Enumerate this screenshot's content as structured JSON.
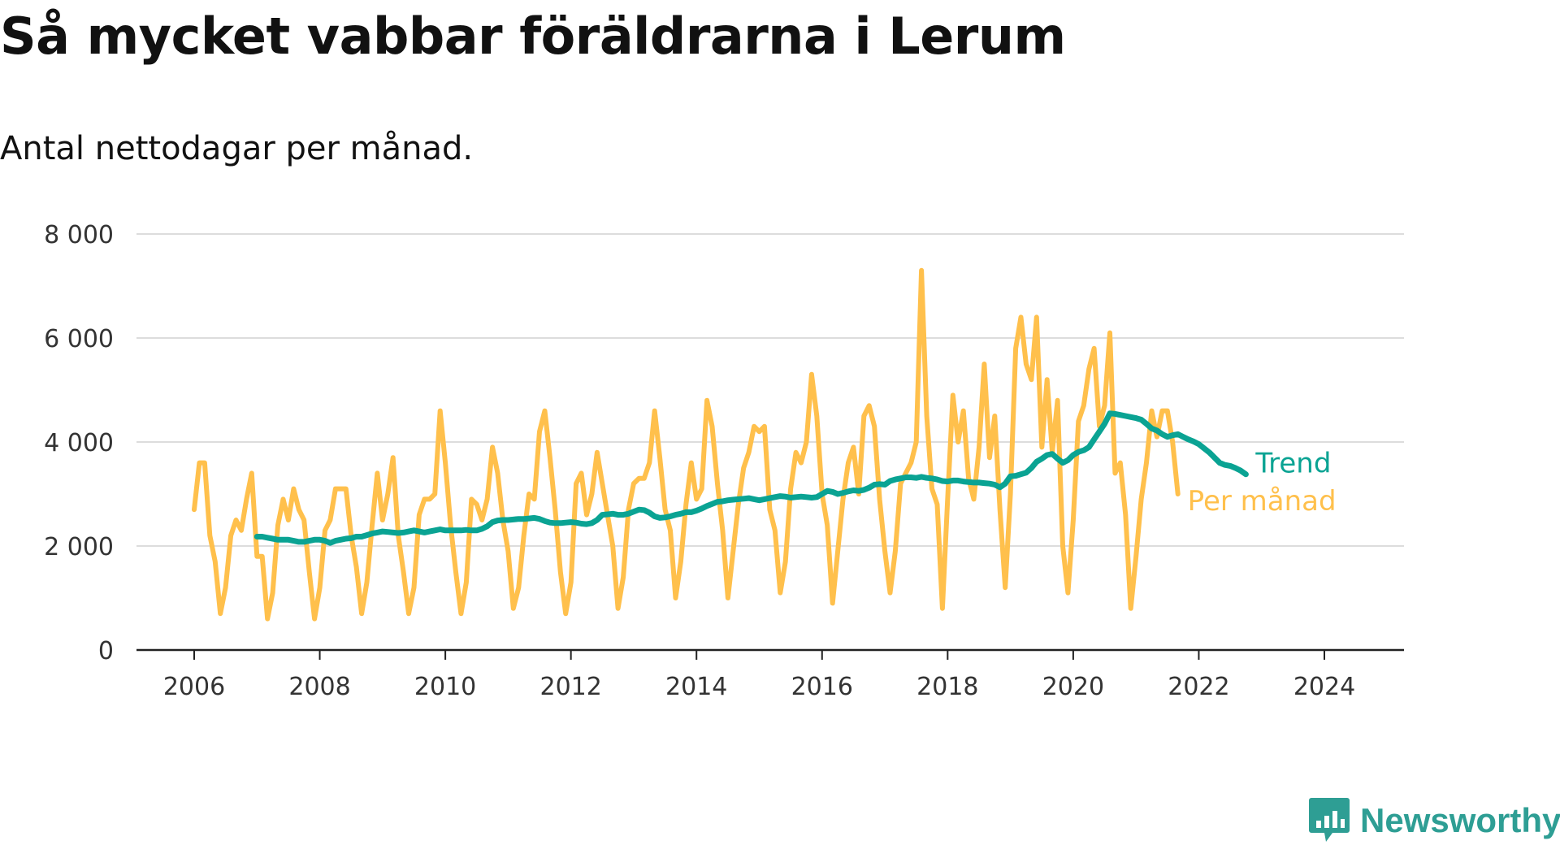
{
  "title": "Så mycket vabbar föräldrarna i Lerum",
  "subtitle": "Antal nettodagar per månad.",
  "logo": {
    "text": "Newsworthy",
    "icon": "bar-chart-speech-bubble-icon",
    "color": "#2e9e94"
  },
  "chart_data": {
    "type": "line",
    "xlabel": "",
    "ylabel": "",
    "ylim": [
      0,
      8000
    ],
    "xlim": [
      2006,
      2025.5
    ],
    "y_ticks": [
      0,
      2000,
      4000,
      6000,
      8000
    ],
    "y_tick_labels": [
      "0",
      "2 000",
      "4 000",
      "6 000",
      "8 000"
    ],
    "x_ticks": [
      2006,
      2008,
      2010,
      2012,
      2014,
      2016,
      2018,
      2020,
      2022,
      2024
    ],
    "x_tick_labels": [
      "2006",
      "2008",
      "2010",
      "2012",
      "2014",
      "2016",
      "2018",
      "2020",
      "2022",
      "2024"
    ],
    "grid": "horizontal",
    "legend": "end-of-line labels (right)",
    "series": [
      {
        "name": "Per månad",
        "color": "#ffc04c",
        "start": "2006-01",
        "values": [
          2700,
          3600,
          3600,
          2200,
          1700,
          700,
          1200,
          2200,
          2500,
          2300,
          2900,
          3400,
          1800,
          1800,
          600,
          1100,
          2400,
          2900,
          2500,
          3100,
          2700,
          2500,
          1500,
          600,
          1200,
          2300,
          2500,
          3100,
          3100,
          3100,
          2200,
          1600,
          700,
          1300,
          2400,
          3400,
          2500,
          3000,
          3700,
          2200,
          1500,
          700,
          1200,
          2600,
          2900,
          2900,
          3000,
          4600,
          3600,
          2400,
          1500,
          700,
          1300,
          2900,
          2800,
          2500,
          2900,
          3900,
          3400,
          2500,
          1900,
          800,
          1200,
          2200,
          3000,
          2900,
          4200,
          4600,
          3700,
          2700,
          1500,
          700,
          1300,
          3200,
          3400,
          2600,
          3000,
          3800,
          3200,
          2600,
          2000,
          800,
          1400,
          2700,
          3200,
          3300,
          3300,
          3600,
          4600,
          3700,
          2700,
          2300,
          1000,
          1700,
          2800,
          3600,
          2900,
          3100,
          4800,
          4300,
          3200,
          2300,
          1000,
          1900,
          2800,
          3500,
          3800,
          4300,
          4200,
          4300,
          2700,
          2300,
          1100,
          1700,
          3100,
          3800,
          3600,
          4000,
          5300,
          4500,
          3000,
          2400,
          900,
          1900,
          2900,
          3600,
          3900,
          3000,
          4500,
          4700,
          4300,
          2900,
          1900,
          1100,
          1900,
          3200,
          3400,
          3600,
          4000,
          7300,
          4500,
          3100,
          2800,
          800,
          2900,
          4900,
          4000,
          4600,
          3300,
          2900,
          3900,
          5500,
          3700,
          4500,
          2700,
          1200,
          3000,
          5800,
          6400,
          5500,
          5200,
          6400,
          3900,
          5200,
          3800,
          4800,
          2000,
          1100,
          2500,
          4400,
          4700,
          5400,
          5800,
          4300,
          4700,
          6100,
          3400,
          3600,
          2600,
          800,
          1800,
          2900,
          3600,
          4600,
          4100,
          4600,
          4600,
          4000,
          3000
        ]
      },
      {
        "name": "Trend",
        "color": "#0aa393",
        "start": "2007-01",
        "values": [
          2180,
          2180,
          2160,
          2140,
          2120,
          2120,
          2120,
          2100,
          2080,
          2080,
          2100,
          2120,
          2120,
          2100,
          2060,
          2100,
          2120,
          2140,
          2150,
          2180,
          2180,
          2210,
          2240,
          2260,
          2280,
          2270,
          2260,
          2250,
          2260,
          2280,
          2300,
          2280,
          2260,
          2280,
          2300,
          2320,
          2300,
          2300,
          2300,
          2300,
          2310,
          2300,
          2300,
          2330,
          2380,
          2460,
          2490,
          2500,
          2500,
          2510,
          2520,
          2520,
          2530,
          2540,
          2520,
          2480,
          2450,
          2440,
          2440,
          2450,
          2460,
          2450,
          2430,
          2420,
          2440,
          2500,
          2600,
          2610,
          2620,
          2600,
          2600,
          2620,
          2660,
          2700,
          2690,
          2640,
          2570,
          2540,
          2550,
          2570,
          2600,
          2620,
          2650,
          2650,
          2680,
          2720,
          2770,
          2810,
          2850,
          2860,
          2880,
          2890,
          2900,
          2910,
          2920,
          2900,
          2880,
          2900,
          2920,
          2940,
          2960,
          2950,
          2930,
          2940,
          2950,
          2940,
          2930,
          2940,
          3000,
          3060,
          3040,
          3000,
          3020,
          3050,
          3070,
          3060,
          3080,
          3120,
          3180,
          3190,
          3180,
          3250,
          3280,
          3300,
          3320,
          3320,
          3310,
          3330,
          3310,
          3300,
          3280,
          3250,
          3240,
          3260,
          3260,
          3240,
          3230,
          3220,
          3220,
          3210,
          3200,
          3180,
          3130,
          3200,
          3340,
          3350,
          3380,
          3410,
          3500,
          3620,
          3680,
          3750,
          3770,
          3680,
          3600,
          3650,
          3750,
          3810,
          3840,
          3900,
          4050,
          4200,
          4350,
          4550,
          4540,
          4520,
          4500,
          4480,
          4460,
          4430,
          4350,
          4260,
          4220,
          4150,
          4100,
          4130,
          4150,
          4100,
          4050,
          4010,
          3960,
          3880,
          3800,
          3700,
          3600,
          3560,
          3540,
          3500,
          3450,
          3380
        ]
      }
    ]
  }
}
